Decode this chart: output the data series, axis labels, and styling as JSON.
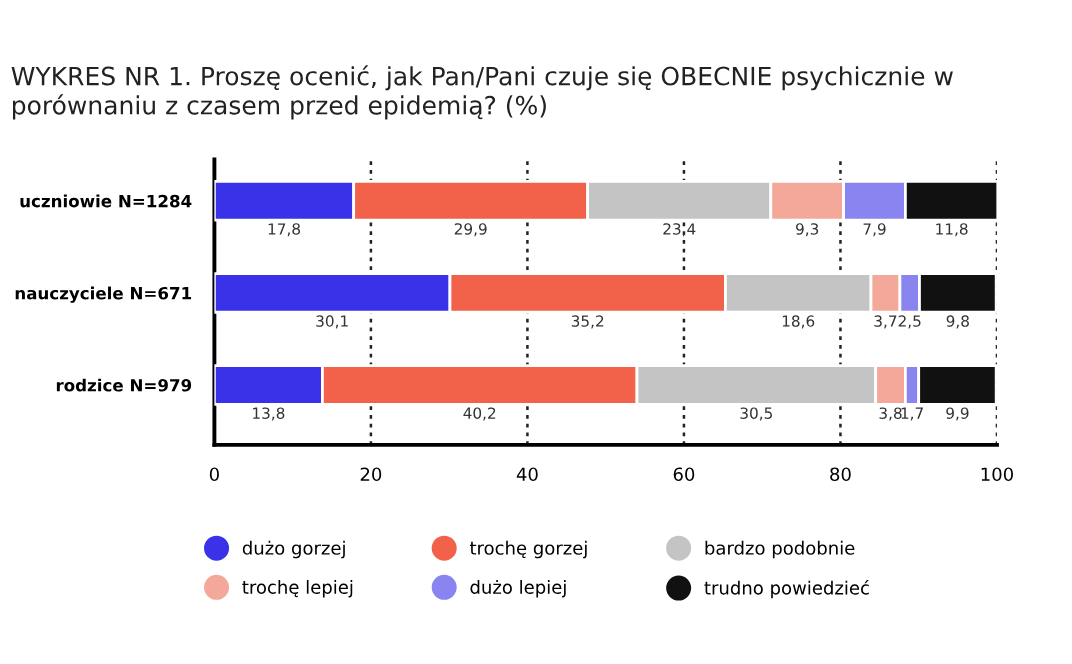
{
  "chart_data": {
    "type": "bar",
    "orientation": "horizontal",
    "stacked": true,
    "title": "WYKRES NR 1. Proszę ocenić, jak Pan/Pani czuje się OBECNIE psychicznie w porównaniu z czasem przed epidemią? (%)",
    "categories": [
      "uczniowie N=1284",
      "nauczyciele N=671",
      "rodzice N=979"
    ],
    "series": [
      {
        "name": "dużo gorzej",
        "color": "#3a32e8",
        "values": [
          17.8,
          30.1,
          13.8
        ],
        "value_labels": [
          "17,8",
          "30,1",
          "13,8"
        ]
      },
      {
        "name": "trochę gorzej",
        "color": "#f2624a",
        "values": [
          29.9,
          35.2,
          40.2
        ],
        "value_labels": [
          "29,9",
          "35,2",
          "40,2"
        ]
      },
      {
        "name": "bardzo podobnie",
        "color": "#c4c4c4",
        "values": [
          23.4,
          18.6,
          30.5
        ],
        "value_labels": [
          "23,4",
          "18,6",
          "30,5"
        ]
      },
      {
        "name": "trochę lepiej",
        "color": "#f4a89a",
        "values": [
          9.3,
          3.7,
          3.8
        ],
        "value_labels": [
          "9,3",
          "3,7",
          "3,8"
        ]
      },
      {
        "name": "dużo lepiej",
        "color": "#8a84f0",
        "values": [
          7.9,
          2.5,
          1.7
        ],
        "value_labels": [
          "7,9",
          "2,5",
          "1,7"
        ]
      },
      {
        "name": "trudno powiedzieć",
        "color": "#111111",
        "values": [
          11.8,
          9.8,
          9.9
        ],
        "value_labels": [
          "11,8",
          "9,8",
          "9,9"
        ]
      }
    ],
    "xlim": [
      0,
      100
    ],
    "xticks": [
      0,
      20,
      40,
      60,
      80,
      100
    ],
    "grid": "x",
    "legend": "bottom",
    "marker": "circle"
  }
}
